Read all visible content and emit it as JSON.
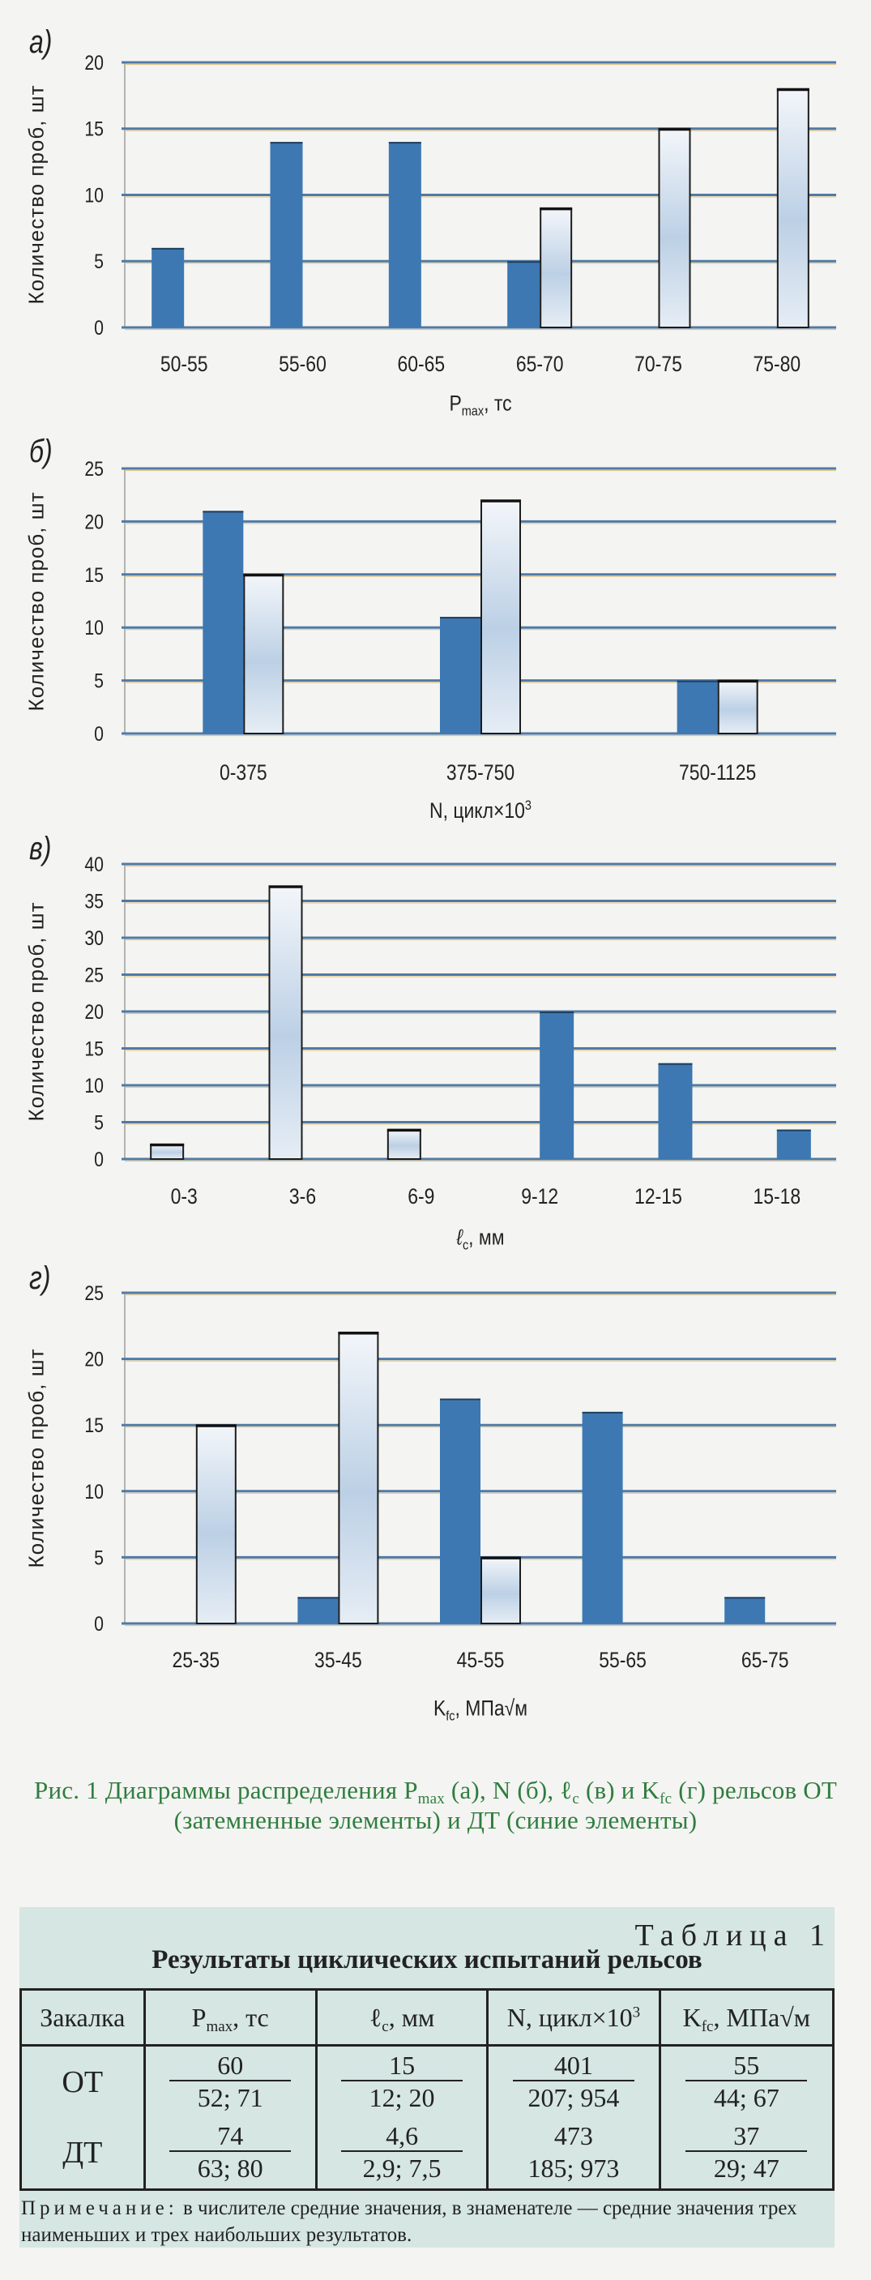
{
  "colors": {
    "ot_dark": "#3d78b2",
    "dt_light": "#dbe6f2",
    "grid": "#4f7aa8",
    "caption": "#2f7d3e",
    "table_bg": "#d5e6e3"
  },
  "y_axis_title": "Количество проб, шт",
  "chart_data": [
    {
      "type": "bar",
      "panel": "а)",
      "title": "",
      "xlabel": {
        "main": "P",
        "sub": "max",
        "rest": ", тс"
      },
      "ylabel": "Количество проб, шт",
      "ylim": [
        0,
        20
      ],
      "yticks": [
        0,
        5,
        10,
        15,
        20
      ],
      "grid": true,
      "categories": [
        "50-55",
        "55-60",
        "60-65",
        "65-70",
        "70-75",
        "75-80"
      ],
      "series": [
        {
          "name": "ОТ (затемненные элементы)",
          "style": "dark",
          "values": [
            6,
            14,
            14,
            5,
            0,
            0
          ]
        },
        {
          "name": "ДТ (синие элементы)",
          "style": "light",
          "values": [
            0,
            0,
            0,
            9,
            15,
            18
          ]
        }
      ]
    },
    {
      "type": "bar",
      "panel": "б)",
      "title": "",
      "xlabel": {
        "main": "N, цикл×10",
        "sup": "3"
      },
      "ylabel": "Количество проб, шт",
      "ylim": [
        0,
        25
      ],
      "yticks": [
        0,
        5,
        10,
        15,
        20,
        25
      ],
      "grid": true,
      "categories": [
        "0-375",
        "375-750",
        "750-1125"
      ],
      "series": [
        {
          "name": "ОТ (затемненные элементы)",
          "style": "dark",
          "values": [
            21,
            11,
            5
          ]
        },
        {
          "name": "ДТ (синие элементы)",
          "style": "light",
          "values": [
            15,
            22,
            5
          ]
        }
      ]
    },
    {
      "type": "bar",
      "panel": "в)",
      "title": "",
      "xlabel": {
        "main": "ℓ",
        "sub": "c",
        "rest": ", мм"
      },
      "ylabel": "Количество проб, шт",
      "ylim": [
        0,
        40
      ],
      "yticks": [
        0,
        5,
        10,
        15,
        20,
        25,
        30,
        35,
        40
      ],
      "grid": true,
      "categories": [
        "0-3",
        "3-6",
        "6-9",
        "9-12",
        "12-15",
        "15-18"
      ],
      "series": [
        {
          "name": "ДТ (синие элементы)",
          "style": "light",
          "values": [
            2,
            37,
            4,
            0,
            0,
            0
          ]
        },
        {
          "name": "ОТ (затемненные элементы)",
          "style": "dark",
          "values": [
            0,
            0,
            0,
            20,
            13,
            4
          ]
        }
      ]
    },
    {
      "type": "bar",
      "panel": "г)",
      "title": "",
      "xlabel": {
        "main": "K",
        "sub": "fc",
        "rest": ", МПа√м"
      },
      "ylabel": "Количество проб, шт",
      "ylim": [
        0,
        25
      ],
      "yticks": [
        0,
        5,
        10,
        15,
        20,
        25
      ],
      "grid": true,
      "categories": [
        "25-35",
        "35-45",
        "45-55",
        "55-65",
        "65-75"
      ],
      "series": [
        {
          "name": "ОТ (затемненные элементы)",
          "style": "dark",
          "values": [
            0,
            2,
            17,
            16,
            2
          ]
        },
        {
          "name": "ДТ (синие элементы)",
          "style": "light",
          "values": [
            15,
            22,
            5,
            0,
            0
          ]
        }
      ]
    }
  ],
  "caption": {
    "p1": "Рис. 1 Диаграммы распределения P",
    "s1": "max",
    "p2": " (а), N (б), ℓ",
    "s2": "c",
    "p3": " (в) и K",
    "s3": "fc",
    "p4": " (г) рельсов ОТ (затемненные элементы) и ДТ (синие элементы)"
  },
  "table": {
    "number": "Таблица 1",
    "title": "Результаты циклических испытаний рельсов",
    "headers": [
      {
        "main": "Закалка"
      },
      {
        "main": "P",
        "sub": "max",
        "rest": ", тс"
      },
      {
        "main": "ℓ",
        "sub": "c",
        "rest": ", мм"
      },
      {
        "main": "N, цикл×10",
        "sup": "3"
      },
      {
        "main": "K",
        "sub": "fc",
        "rest": ", МПа√м"
      }
    ],
    "rows": [
      {
        "label": "ОТ",
        "cells": [
          {
            "n": "60",
            "d": "52; 71"
          },
          {
            "n": "15",
            "d": "12; 20"
          },
          {
            "n": "401",
            "d": "207; 954"
          },
          {
            "n": "55",
            "d": "44; 67"
          }
        ]
      },
      {
        "label": "ДТ",
        "cells": [
          {
            "n": "74",
            "d": "63; 80"
          },
          {
            "n": "4,6",
            "d": "2,9; 7,5"
          },
          {
            "n": "473",
            "d": "185; 973"
          },
          {
            "n": "37",
            "d": "29; 47"
          }
        ]
      }
    ],
    "note_label": "Примечание:",
    "note_text": " в числителе средние значения, в знаменателе — средние значения трех наименьших и трех наибольших результатов."
  }
}
